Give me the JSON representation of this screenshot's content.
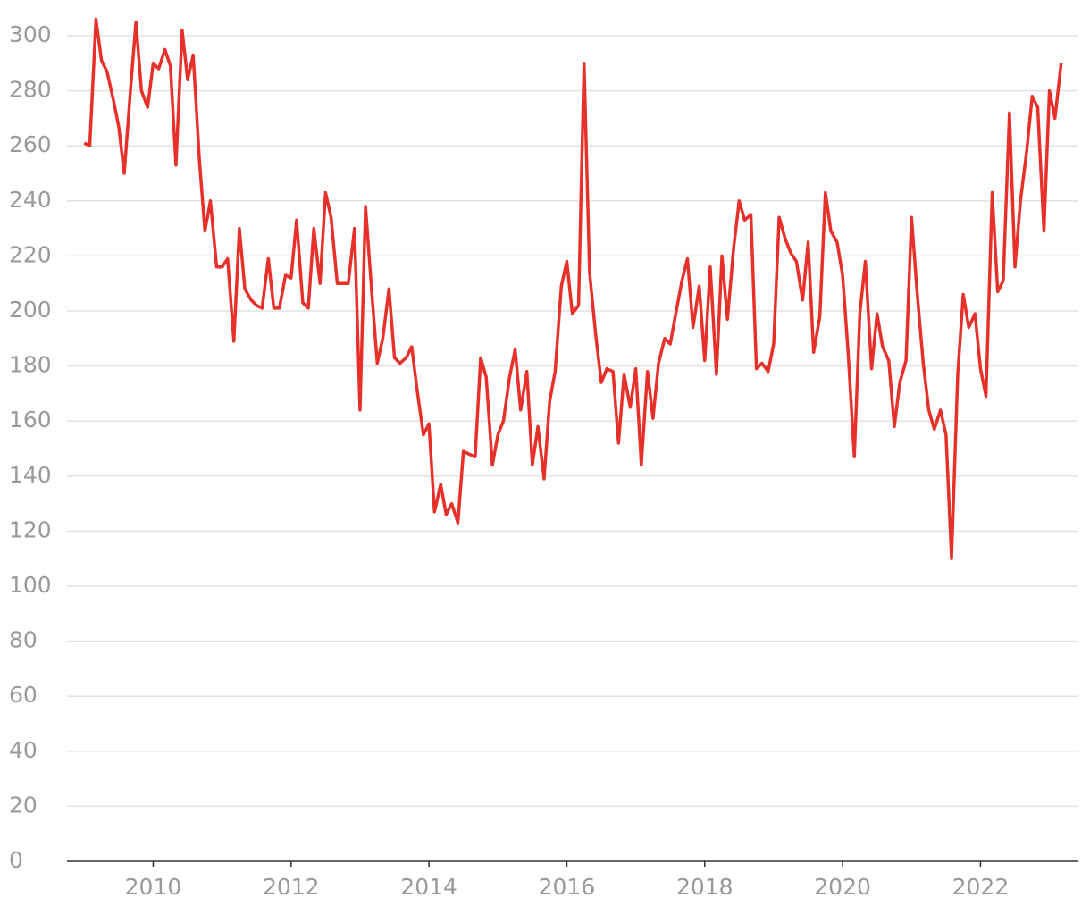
{
  "chart_data": {
    "type": "line",
    "x": [
      2009.0,
      2009.08,
      2009.17,
      2009.25,
      2009.33,
      2009.42,
      2009.5,
      2009.58,
      2009.67,
      2009.75,
      2009.83,
      2009.92,
      2010.0,
      2010.08,
      2010.17,
      2010.25,
      2010.33,
      2010.42,
      2010.5,
      2010.58,
      2010.67,
      2010.75,
      2010.83,
      2010.92,
      2011.0,
      2011.08,
      2011.17,
      2011.25,
      2011.33,
      2011.42,
      2011.5,
      2011.58,
      2011.67,
      2011.75,
      2011.83,
      2011.92,
      2012.0,
      2012.08,
      2012.17,
      2012.25,
      2012.33,
      2012.42,
      2012.5,
      2012.58,
      2012.67,
      2012.75,
      2012.83,
      2012.92,
      2013.0,
      2013.08,
      2013.17,
      2013.25,
      2013.33,
      2013.42,
      2013.5,
      2013.58,
      2013.67,
      2013.75,
      2013.83,
      2013.92,
      2014.0,
      2014.08,
      2014.17,
      2014.25,
      2014.33,
      2014.42,
      2014.5,
      2014.58,
      2014.67,
      2014.75,
      2014.83,
      2014.92,
      2015.0,
      2015.08,
      2015.17,
      2015.25,
      2015.33,
      2015.42,
      2015.5,
      2015.58,
      2015.67,
      2015.75,
      2015.83,
      2015.92,
      2016.0,
      2016.08,
      2016.17,
      2016.25,
      2016.33,
      2016.42,
      2016.5,
      2016.58,
      2016.67,
      2016.75,
      2016.83,
      2016.92,
      2017.0,
      2017.08,
      2017.17,
      2017.25,
      2017.33,
      2017.42,
      2017.5,
      2017.58,
      2017.67,
      2017.75,
      2017.83,
      2017.92,
      2018.0,
      2018.08,
      2018.17,
      2018.25,
      2018.33,
      2018.42,
      2018.5,
      2018.58,
      2018.67,
      2018.75,
      2018.83,
      2018.92,
      2019.0,
      2019.08,
      2019.17,
      2019.25,
      2019.33,
      2019.42,
      2019.5,
      2019.58,
      2019.67,
      2019.75,
      2019.83,
      2019.92,
      2020.0,
      2020.08,
      2020.17,
      2020.25,
      2020.33,
      2020.42,
      2020.5,
      2020.58,
      2020.67,
      2020.75,
      2020.83,
      2020.92,
      2021.0,
      2021.08,
      2021.17,
      2021.25,
      2021.33,
      2021.42,
      2021.5,
      2021.58,
      2021.67,
      2021.75,
      2021.83,
      2021.92,
      2022.0,
      2022.08,
      2022.17,
      2022.25,
      2022.33,
      2022.42,
      2022.5,
      2022.58,
      2022.67,
      2022.75,
      2022.83,
      2022.92,
      2023.0,
      2023.08,
      2023.17
    ],
    "series": [
      {
        "color": "#e8302a",
        "values": [
          261,
          260,
          306,
          291,
          287,
          277,
          267,
          250,
          280,
          305,
          280,
          274,
          290,
          288,
          295,
          289,
          253,
          302,
          284,
          293,
          255,
          229,
          240,
          216,
          216,
          219,
          189,
          230,
          208,
          204,
          202,
          201,
          219,
          201,
          201,
          213,
          212,
          233,
          203,
          201,
          230,
          210,
          243,
          234,
          210,
          210,
          210,
          230,
          164,
          238,
          207,
          181,
          190,
          208,
          183,
          181,
          183,
          187,
          171,
          155,
          159,
          127,
          137,
          126,
          130,
          123,
          149,
          148,
          147,
          183,
          176,
          144,
          155,
          160,
          176,
          186,
          164,
          178,
          144,
          158,
          139,
          167,
          178,
          209,
          218,
          199,
          202,
          290,
          214,
          191,
          174,
          179,
          178,
          152,
          177,
          165,
          179,
          144,
          178,
          161,
          181,
          190,
          188,
          199,
          211,
          219,
          194,
          209,
          182,
          216,
          177,
          220,
          197,
          223,
          240,
          233,
          235,
          179,
          181,
          178,
          188,
          234,
          226,
          221,
          218,
          204,
          225,
          185,
          198,
          243,
          229,
          225,
          213,
          185,
          147,
          199,
          218,
          179,
          199,
          187,
          182,
          158,
          174,
          182,
          234,
          207,
          181,
          164,
          157,
          164,
          155,
          110,
          177,
          206,
          194,
          199,
          179,
          169,
          243,
          207,
          211,
          272,
          216,
          240,
          258,
          278,
          274,
          229,
          280,
          270,
          290
        ]
      }
    ],
    "xlim": [
      2008.75,
      2023.42
    ],
    "xticks": [
      2010,
      2012,
      2014,
      2016,
      2018,
      2020,
      2022
    ],
    "ylim": [
      0,
      310
    ],
    "yticks": [
      0,
      20,
      40,
      60,
      80,
      100,
      120,
      140,
      160,
      180,
      200,
      220,
      240,
      260,
      280,
      300
    ],
    "grid": true
  }
}
